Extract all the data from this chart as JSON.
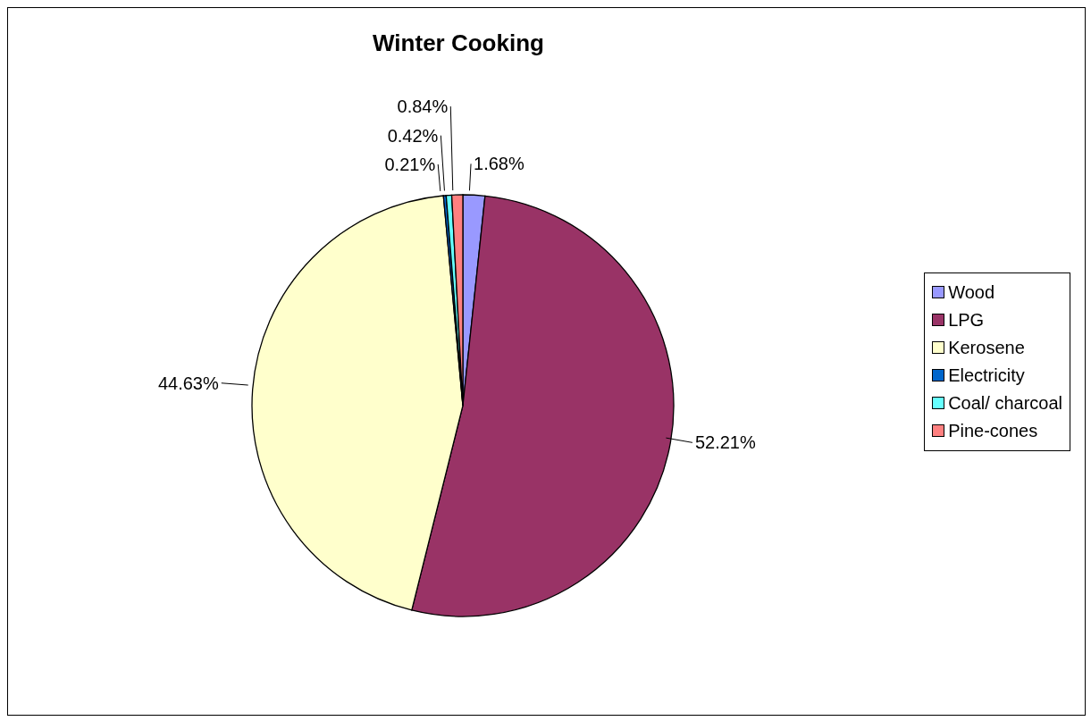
{
  "chart_data": {
    "type": "pie",
    "title": "Winter Cooking",
    "categories": [
      "Wood",
      "LPG",
      "Kerosene",
      "Electricity",
      "Coal/ charcoal",
      "Pine-cones"
    ],
    "values": [
      1.68,
      52.21,
      44.63,
      0.21,
      0.42,
      0.84
    ],
    "value_labels": [
      "1.68%",
      "52.21%",
      "44.63%",
      "0.21%",
      "0.42%",
      "0.84%"
    ],
    "colors": [
      "#9999ff",
      "#993366",
      "#ffffcc",
      "#0066cc",
      "#66ffff",
      "#ff8080"
    ],
    "legend": "right"
  }
}
